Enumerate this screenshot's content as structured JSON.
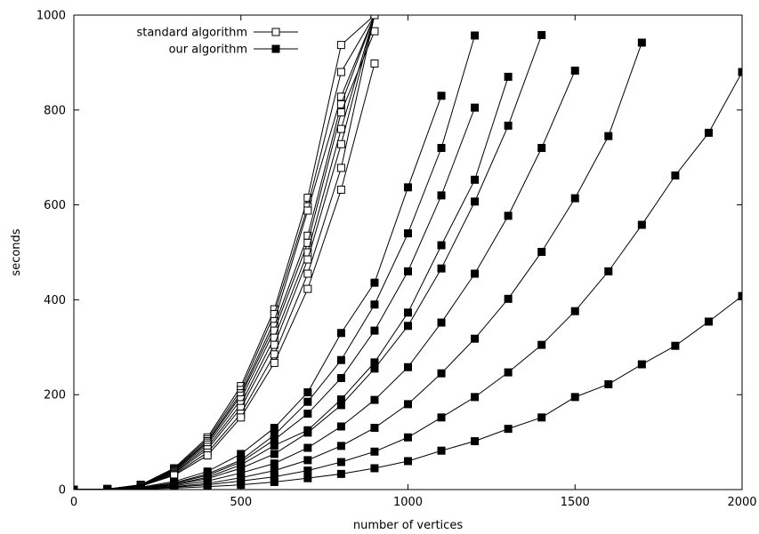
{
  "chart_data": {
    "type": "line",
    "title": "",
    "xlabel": "number of vertices",
    "ylabel": "seconds",
    "xlim": [
      0,
      2000
    ],
    "ylim": [
      0,
      1000
    ],
    "x_ticks": [
      0,
      500,
      1000,
      1500,
      2000
    ],
    "y_ticks": [
      0,
      200,
      400,
      600,
      800,
      1000
    ],
    "grid": false,
    "legend_position": "top-left",
    "legend": [
      {
        "label": "standard algorithm",
        "marker": "open-square"
      },
      {
        "label": "our algorithm",
        "marker": "filled-square"
      }
    ],
    "series": [
      {
        "group": "standard algorithm",
        "marker": "open-square",
        "x": [
          0,
          100,
          200,
          300,
          400,
          500,
          600,
          700,
          800,
          900
        ],
        "y": [
          0,
          1,
          10,
          45,
          110,
          218,
          380,
          615,
          937,
          1000
        ]
      },
      {
        "group": "standard algorithm",
        "marker": "open-square",
        "x": [
          0,
          100,
          200,
          300,
          400,
          500,
          600,
          700,
          800,
          900
        ],
        "y": [
          0,
          1,
          10,
          43,
          106,
          210,
          370,
          597,
          880,
          1000
        ]
      },
      {
        "group": "standard algorithm",
        "marker": "open-square",
        "x": [
          0,
          100,
          200,
          300,
          400,
          500,
          600,
          700,
          800,
          900
        ],
        "y": [
          0,
          1,
          9,
          41,
          102,
          203,
          355,
          588,
          828,
          1000
        ]
      },
      {
        "group": "standard algorithm",
        "marker": "open-square",
        "x": [
          0,
          100,
          200,
          300,
          400,
          500,
          600,
          700,
          800,
          900
        ],
        "y": [
          0,
          1,
          9,
          40,
          99,
          198,
          345,
          535,
          812,
          1000
        ]
      },
      {
        "group": "standard algorithm",
        "marker": "open-square",
        "x": [
          0,
          100,
          200,
          300,
          400,
          500,
          600,
          700,
          800,
          900
        ],
        "y": [
          0,
          1,
          9,
          38,
          95,
          190,
          335,
          520,
          795,
          966
        ]
      },
      {
        "group": "standard algorithm",
        "marker": "open-square",
        "x": [
          0,
          100,
          200,
          300,
          400,
          500,
          600,
          700,
          800,
          900
        ],
        "y": [
          0,
          1,
          8,
          36,
          90,
          180,
          320,
          500,
          760,
          1000
        ]
      },
      {
        "group": "standard algorithm",
        "marker": "open-square",
        "x": [
          0,
          100,
          200,
          300,
          400,
          500,
          600,
          700,
          800,
          900
        ],
        "y": [
          0,
          1,
          8,
          34,
          85,
          172,
          305,
          485,
          728,
          1000
        ]
      },
      {
        "group": "standard algorithm",
        "marker": "open-square",
        "x": [
          0,
          100,
          200,
          300,
          400,
          500,
          600,
          700,
          800,
          900
        ],
        "y": [
          0,
          1,
          7,
          32,
          78,
          160,
          285,
          455,
          678,
          1000
        ]
      },
      {
        "group": "standard algorithm",
        "marker": "open-square",
        "x": [
          0,
          100,
          200,
          300,
          400,
          500,
          600,
          700,
          800,
          900
        ],
        "y": [
          0,
          1,
          7,
          30,
          72,
          152,
          267,
          423,
          632,
          898
        ]
      },
      {
        "group": "our algorithm",
        "marker": "filled-square",
        "x": [
          0,
          100,
          200,
          300,
          400,
          500,
          600,
          700,
          800,
          900,
          1000,
          1100
        ],
        "y": [
          0,
          1,
          5,
          17,
          38,
          75,
          130,
          205,
          330,
          436,
          637,
          830
        ]
      },
      {
        "group": "our algorithm",
        "marker": "filled-square",
        "x": [
          0,
          100,
          200,
          300,
          400,
          500,
          600,
          700,
          800,
          900,
          1000,
          1100,
          1200
        ],
        "y": [
          0,
          1,
          4,
          14,
          33,
          62,
          115,
          185,
          273,
          390,
          540,
          720,
          957
        ]
      },
      {
        "group": "our algorithm",
        "marker": "filled-square",
        "x": [
          0,
          100,
          200,
          300,
          400,
          500,
          600,
          700,
          800,
          900,
          1000,
          1100,
          1200
        ],
        "y": [
          0,
          1,
          4,
          13,
          30,
          58,
          105,
          160,
          235,
          335,
          460,
          620,
          805
        ]
      },
      {
        "group": "our algorithm",
        "marker": "filled-square",
        "x": [
          0,
          100,
          200,
          300,
          400,
          500,
          600,
          700,
          800,
          900,
          1000,
          1100,
          1200,
          1300
        ],
        "y": [
          0,
          1,
          3,
          11,
          26,
          52,
          93,
          125,
          190,
          268,
          373,
          515,
          653,
          870
        ]
      },
      {
        "group": "our algorithm",
        "marker": "filled-square",
        "x": [
          0,
          100,
          200,
          300,
          400,
          500,
          600,
          700,
          800,
          900,
          1000,
          1100,
          1200,
          1300,
          1400
        ],
        "y": [
          0,
          1,
          3,
          10,
          23,
          45,
          75,
          120,
          178,
          255,
          345,
          466,
          607,
          767,
          958
        ]
      },
      {
        "group": "our algorithm",
        "marker": "filled-square",
        "x": [
          0,
          100,
          200,
          300,
          400,
          500,
          600,
          700,
          800,
          900,
          1000,
          1100,
          1200,
          1300,
          1400,
          1500
        ],
        "y": [
          0,
          1,
          3,
          8,
          18,
          35,
          55,
          88,
          133,
          189,
          258,
          352,
          455,
          577,
          720,
          883
        ]
      },
      {
        "group": "our algorithm",
        "marker": "filled-square",
        "x": [
          0,
          100,
          200,
          300,
          400,
          500,
          600,
          700,
          800,
          900,
          1000,
          1100,
          1200,
          1300,
          1400,
          1500,
          1600,
          1700
        ],
        "y": [
          0,
          1,
          2,
          6,
          13,
          25,
          40,
          62,
          92,
          130,
          180,
          245,
          318,
          402,
          501,
          614,
          745,
          942
        ]
      },
      {
        "group": "our algorithm",
        "marker": "filled-square",
        "x": [
          0,
          100,
          200,
          300,
          400,
          500,
          600,
          700,
          800,
          900,
          1000,
          1100,
          1200,
          1300,
          1400,
          1500,
          1600,
          1700,
          1800,
          1900,
          2000
        ],
        "y": [
          0,
          1,
          2,
          5,
          10,
          18,
          27,
          40,
          58,
          80,
          110,
          152,
          195,
          247,
          305,
          376,
          460,
          558,
          662,
          752,
          880
        ]
      },
      {
        "group": "our algorithm",
        "marker": "filled-square",
        "x": [
          0,
          100,
          200,
          300,
          400,
          500,
          600,
          700,
          800,
          900,
          1000,
          1100,
          1200,
          1300,
          1400,
          1500,
          1600,
          1700,
          1800,
          1900,
          2000
        ],
        "y": [
          0,
          1,
          1,
          3,
          6,
          10,
          16,
          24,
          33,
          45,
          60,
          82,
          102,
          128,
          152,
          195,
          222,
          264,
          303,
          354,
          408
        ]
      }
    ]
  }
}
